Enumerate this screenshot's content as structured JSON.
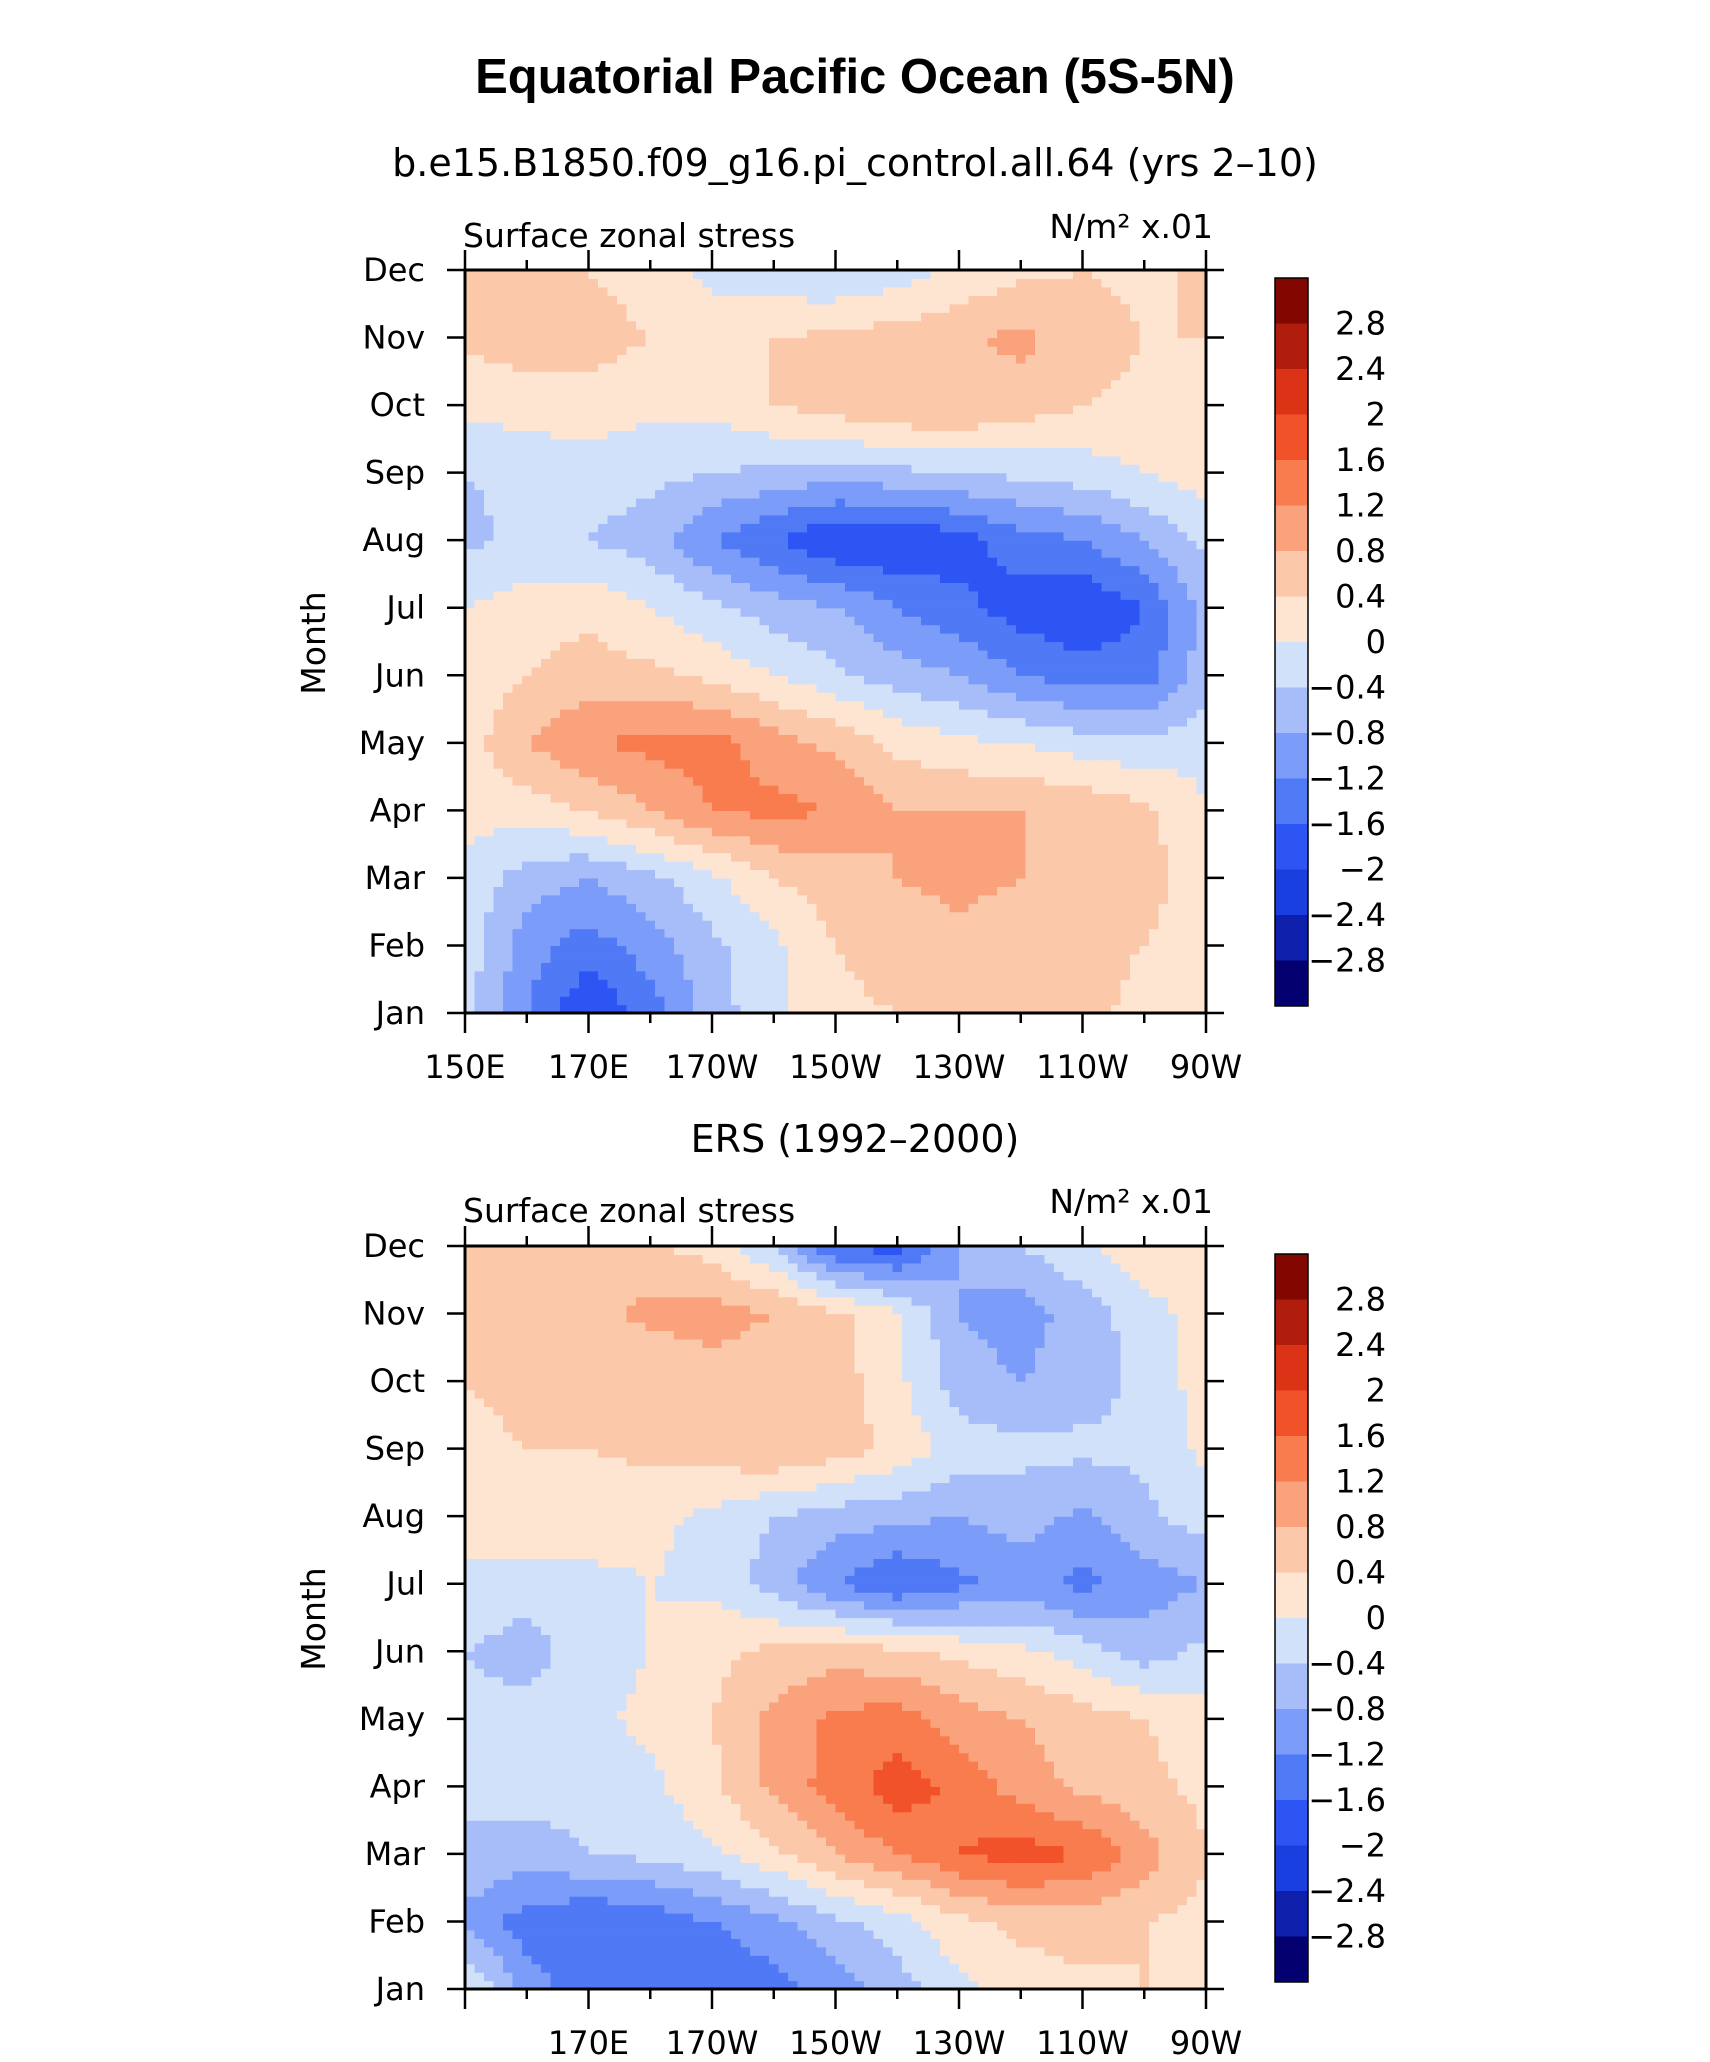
{
  "title": "Equatorial Pacific Ocean (5S-5N)",
  "colors": [
    "#04006f",
    "#0d1fab",
    "#1a3fe0",
    "#2c55f4",
    "#5079f6",
    "#7b9cf8",
    "#a6bdf9",
    "#d2e1fa",
    "#fde5d2",
    "#fbc8a9",
    "#f9a27c",
    "#f97c4f",
    "#f2522a",
    "#dc3317",
    "#b01d0c",
    "#830701"
  ],
  "chart_data": [
    {
      "type": "heatmap",
      "panel_title": "b.e15.B1850.f09_g16.pi_control.all.64 (yrs 2–10)",
      "variable_label": "Surface zonal stress",
      "units_label": "N/m² x.01",
      "ylabel": "Month",
      "x_ticks": [
        "150E",
        "170E",
        "170W",
        "150W",
        "130W",
        "110W",
        "90W"
      ],
      "y_ticks": [
        "Jan",
        "Feb",
        "Mar",
        "Apr",
        "May",
        "Jun",
        "Jul",
        "Aug",
        "Sep",
        "Oct",
        "Nov",
        "Dec"
      ],
      "x_range": [
        "150E",
        "90W"
      ],
      "longitudes": [
        "150E",
        "160E",
        "170E",
        "180",
        "170W",
        "160W",
        "150W",
        "140W",
        "130W",
        "120W",
        "110W",
        "100W",
        "90W"
      ],
      "months": [
        "Jan",
        "Feb",
        "Mar",
        "Apr",
        "May",
        "Jun",
        "Jul",
        "Aug",
        "Sep",
        "Oct",
        "Nov",
        "Dec"
      ],
      "values": [
        [
          -0.2,
          -1.2,
          -2.0,
          -1.4,
          -0.6,
          -0.1,
          0.3,
          0.4,
          0.5,
          0.6,
          0.5,
          0.3,
          0.1
        ],
        [
          -0.2,
          -1.0,
          -1.4,
          -1.0,
          -0.5,
          -0.1,
          0.4,
          0.6,
          0.7,
          0.6,
          0.5,
          0.4,
          0.2
        ],
        [
          -0.1,
          -0.6,
          -0.8,
          -0.5,
          -0.1,
          0.4,
          0.6,
          0.8,
          0.9,
          0.8,
          0.7,
          0.6,
          0.1
        ],
        [
          0.1,
          0.2,
          0.4,
          0.8,
          1.2,
          1.3,
          1.2,
          0.8,
          0.8,
          0.8,
          0.7,
          0.5,
          0.0
        ],
        [
          0.2,
          0.8,
          1.2,
          1.3,
          1.4,
          1.0,
          0.7,
          0.3,
          0.1,
          0.0,
          -0.2,
          -0.3,
          -0.1
        ],
        [
          0.1,
          0.4,
          0.6,
          0.5,
          0.3,
          0.0,
          -0.3,
          -0.6,
          -0.8,
          -1.2,
          -1.4,
          -1.4,
          -0.6
        ],
        [
          0.0,
          0.2,
          0.3,
          0.0,
          -0.3,
          -0.6,
          -0.8,
          -1.2,
          -1.5,
          -1.8,
          -2.0,
          -1.6,
          -0.6
        ],
        [
          -0.5,
          -0.3,
          -0.4,
          -0.6,
          -1.2,
          -1.6,
          -2.0,
          -2.0,
          -1.8,
          -1.4,
          -1.2,
          -0.8,
          -0.3
        ],
        [
          -0.4,
          -0.3,
          -0.2,
          -0.3,
          -0.4,
          -0.5,
          -0.6,
          -0.5,
          -0.4,
          -0.3,
          -0.2,
          0.0,
          0.2
        ],
        [
          0.1,
          0.2,
          0.2,
          0.1,
          0.1,
          0.4,
          0.6,
          0.8,
          0.8,
          0.6,
          0.4,
          0.3,
          0.4
        ],
        [
          0.5,
          0.6,
          0.6,
          0.4,
          0.2,
          0.4,
          0.5,
          0.6,
          0.7,
          0.9,
          0.6,
          0.4,
          0.4
        ],
        [
          0.5,
          0.5,
          0.4,
          0.2,
          -0.1,
          -0.3,
          -0.4,
          -0.2,
          0.1,
          0.3,
          0.4,
          0.3,
          0.5
        ]
      ],
      "colorbar_levels": [
        "2.8",
        "2.4",
        "2",
        "1.6",
        "1.2",
        "0.8",
        "0.4",
        "0",
        "−0.4",
        "−0.8",
        "−1.2",
        "−1.6",
        "−2",
        "−2.4",
        "−2.8"
      ],
      "contour_levels": [
        -2.8,
        -2.4,
        -2.0,
        -1.6,
        -1.2,
        -0.8,
        -0.4,
        0.0,
        0.4,
        0.8,
        1.2,
        1.6,
        2.0,
        2.4,
        2.8
      ]
    },
    {
      "type": "heatmap",
      "panel_title": "ERS (1992–2000)",
      "variable_label": "Surface zonal stress",
      "units_label": "N/m² x.01",
      "ylabel": "Month",
      "x_ticks": [
        "170E",
        "170W",
        "150W",
        "130W",
        "110W",
        "90W"
      ],
      "y_ticks": [
        "Jan",
        "Feb",
        "Mar",
        "Apr",
        "May",
        "Jun",
        "Jul",
        "Aug",
        "Sep",
        "Oct",
        "Nov",
        "Dec"
      ],
      "x_range": [
        "150E",
        "90W"
      ],
      "longitudes": [
        "150E",
        "160E",
        "170E",
        "180",
        "170W",
        "160W",
        "150W",
        "140W",
        "130W",
        "120W",
        "110W",
        "100W",
        "90W"
      ],
      "months": [
        "Jan",
        "Feb",
        "Mar",
        "Apr",
        "May",
        "Jun",
        "Jul",
        "Aug",
        "Sep",
        "Oct",
        "Nov",
        "Dec"
      ],
      "values": [
        [
          0.1,
          -1.0,
          -1.4,
          -1.6,
          -1.6,
          -1.4,
          -1.0,
          -0.6,
          -0.1,
          0.2,
          0.3,
          0.4,
          0.3
        ],
        [
          -0.9,
          -1.4,
          -1.6,
          -1.5,
          -1.2,
          -0.9,
          -0.5,
          -0.2,
          0.3,
          0.5,
          0.6,
          0.4,
          0.3
        ],
        [
          -0.5,
          -0.6,
          -0.4,
          -0.3,
          -0.1,
          0.3,
          0.8,
          1.2,
          1.6,
          1.8,
          1.6,
          1.0,
          0.4
        ],
        [
          -0.3,
          -0.2,
          -0.3,
          -0.1,
          0.3,
          0.9,
          1.4,
          1.8,
          1.5,
          1.0,
          0.7,
          0.5,
          0.3
        ],
        [
          -0.3,
          -0.2,
          -0.1,
          0.1,
          0.4,
          0.9,
          1.3,
          1.4,
          1.0,
          0.8,
          0.6,
          0.4,
          0.2
        ],
        [
          -0.4,
          -0.6,
          -0.2,
          0.0,
          0.3,
          0.5,
          0.6,
          0.5,
          0.3,
          0.1,
          -0.2,
          -0.6,
          -0.3
        ],
        [
          -0.1,
          -0.2,
          -0.1,
          0.0,
          -0.1,
          -0.6,
          -1.2,
          -1.6,
          -1.3,
          -1.1,
          -1.3,
          -1.0,
          -0.8
        ],
        [
          0.2,
          0.3,
          0.2,
          0.1,
          -0.1,
          -0.4,
          -0.6,
          -0.7,
          -0.8,
          -0.6,
          -0.9,
          -0.5,
          -0.2
        ],
        [
          0.3,
          0.4,
          0.4,
          0.5,
          0.6,
          0.8,
          0.6,
          0.3,
          -0.2,
          -0.3,
          -0.3,
          -0.3,
          0.1
        ],
        [
          0.4,
          0.5,
          0.5,
          0.4,
          0.6,
          0.5,
          0.6,
          0.1,
          -0.6,
          -0.8,
          -0.6,
          -0.3,
          0.2
        ],
        [
          0.5,
          0.6,
          0.7,
          0.9,
          1.0,
          0.8,
          0.5,
          0.1,
          -0.8,
          -1.0,
          -0.6,
          -0.2,
          0.2
        ],
        [
          0.7,
          0.6,
          0.6,
          0.5,
          0.2,
          -0.4,
          -1.6,
          -1.8,
          -0.8,
          -0.4,
          -0.1,
          0.3,
          0.4
        ]
      ],
      "colorbar_levels": [
        "2.8",
        "2.4",
        "2",
        "1.6",
        "1.2",
        "0.8",
        "0.4",
        "0",
        "−0.4",
        "−0.8",
        "−1.2",
        "−1.6",
        "−2",
        "−2.4",
        "−2.8"
      ],
      "contour_levels": [
        -2.8,
        -2.4,
        -2.0,
        -1.6,
        -1.2,
        -0.8,
        -0.4,
        0.0,
        0.4,
        0.8,
        1.2,
        1.6,
        2.0,
        2.4,
        2.8
      ]
    }
  ]
}
